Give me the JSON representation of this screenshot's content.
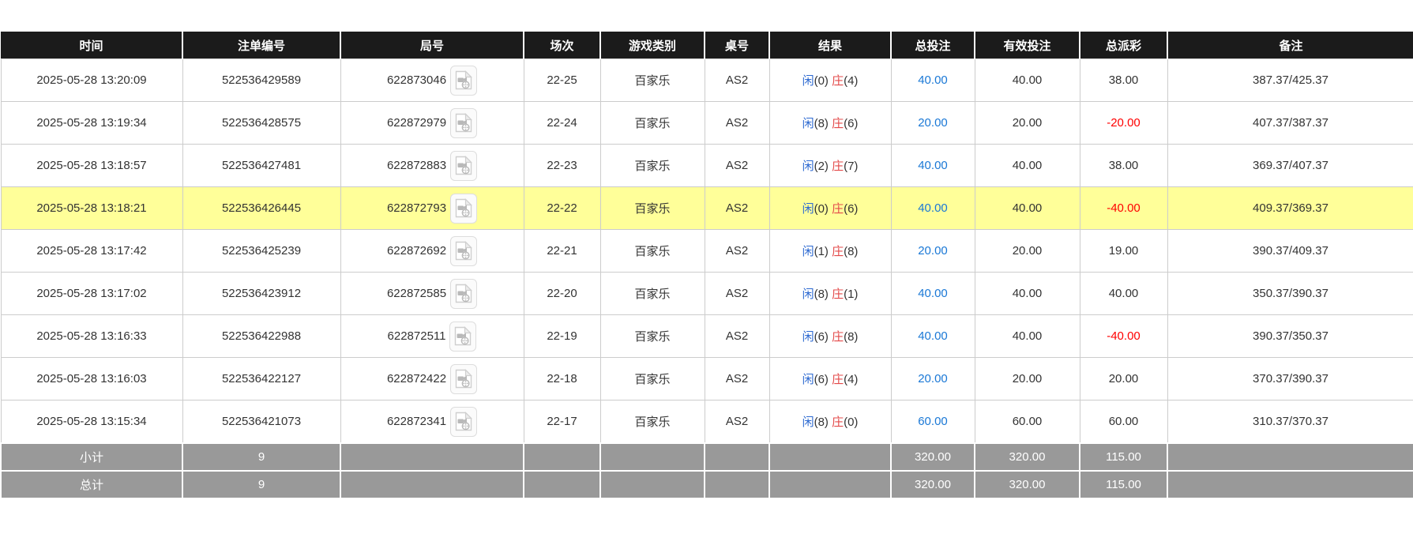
{
  "table": {
    "columns": [
      {
        "key": "time",
        "label": "时间"
      },
      {
        "key": "bet_id",
        "label": "注单编号"
      },
      {
        "key": "round_id",
        "label": "局号"
      },
      {
        "key": "session",
        "label": "场次"
      },
      {
        "key": "game_type",
        "label": "游戏类别"
      },
      {
        "key": "table_no",
        "label": "桌号"
      },
      {
        "key": "result",
        "label": "结果"
      },
      {
        "key": "total_bet",
        "label": "总投注"
      },
      {
        "key": "valid_bet",
        "label": "有效投注"
      },
      {
        "key": "total_payout",
        "label": "总派彩"
      },
      {
        "key": "remark",
        "label": "备注"
      }
    ],
    "rows": [
      {
        "time": "2025-05-28 13:20:09",
        "bet_id": "522536429589",
        "round_id": "622873046",
        "session": "22-25",
        "game_type": "百家乐",
        "table_no": "AS2",
        "result": {
          "player": "闲",
          "player_pts": "(0)",
          "banker": "庄",
          "banker_pts": "(4)"
        },
        "total_bet": "40.00",
        "valid_bet": "40.00",
        "total_payout": "38.00",
        "remark": "387.37/425.37",
        "highlighted": false
      },
      {
        "time": "2025-05-28 13:19:34",
        "bet_id": "522536428575",
        "round_id": "622872979",
        "session": "22-24",
        "game_type": "百家乐",
        "table_no": "AS2",
        "result": {
          "player": "闲",
          "player_pts": "(8)",
          "banker": "庄",
          "banker_pts": "(6)"
        },
        "total_bet": "20.00",
        "valid_bet": "20.00",
        "total_payout": "-20.00",
        "remark": "407.37/387.37",
        "highlighted": false
      },
      {
        "time": "2025-05-28 13:18:57",
        "bet_id": "522536427481",
        "round_id": "622872883",
        "session": "22-23",
        "game_type": "百家乐",
        "table_no": "AS2",
        "result": {
          "player": "闲",
          "player_pts": "(2)",
          "banker": "庄",
          "banker_pts": "(7)"
        },
        "total_bet": "40.00",
        "valid_bet": "40.00",
        "total_payout": "38.00",
        "remark": "369.37/407.37",
        "highlighted": false
      },
      {
        "time": "2025-05-28 13:18:21",
        "bet_id": "522536426445",
        "round_id": "622872793",
        "session": "22-22",
        "game_type": "百家乐",
        "table_no": "AS2",
        "result": {
          "player": "闲",
          "player_pts": "(0)",
          "banker": "庄",
          "banker_pts": "(6)"
        },
        "total_bet": "40.00",
        "valid_bet": "40.00",
        "total_payout": "-40.00",
        "remark": "409.37/369.37",
        "highlighted": true
      },
      {
        "time": "2025-05-28 13:17:42",
        "bet_id": "522536425239",
        "round_id": "622872692",
        "session": "22-21",
        "game_type": "百家乐",
        "table_no": "AS2",
        "result": {
          "player": "闲",
          "player_pts": "(1)",
          "banker": "庄",
          "banker_pts": "(8)"
        },
        "total_bet": "20.00",
        "valid_bet": "20.00",
        "total_payout": "19.00",
        "remark": "390.37/409.37",
        "highlighted": false
      },
      {
        "time": "2025-05-28 13:17:02",
        "bet_id": "522536423912",
        "round_id": "622872585",
        "session": "22-20",
        "game_type": "百家乐",
        "table_no": "AS2",
        "result": {
          "player": "闲",
          "player_pts": "(8)",
          "banker": "庄",
          "banker_pts": "(1)"
        },
        "total_bet": "40.00",
        "valid_bet": "40.00",
        "total_payout": "40.00",
        "remark": "350.37/390.37",
        "highlighted": false
      },
      {
        "time": "2025-05-28 13:16:33",
        "bet_id": "522536422988",
        "round_id": "622872511",
        "session": "22-19",
        "game_type": "百家乐",
        "table_no": "AS2",
        "result": {
          "player": "闲",
          "player_pts": "(6)",
          "banker": "庄",
          "banker_pts": "(8)"
        },
        "total_bet": "40.00",
        "valid_bet": "40.00",
        "total_payout": "-40.00",
        "remark": "390.37/350.37",
        "highlighted": false
      },
      {
        "time": "2025-05-28 13:16:03",
        "bet_id": "522536422127",
        "round_id": "622872422",
        "session": "22-18",
        "game_type": "百家乐",
        "table_no": "AS2",
        "result": {
          "player": "闲",
          "player_pts": "(6)",
          "banker": "庄",
          "banker_pts": "(4)"
        },
        "total_bet": "20.00",
        "valid_bet": "20.00",
        "total_payout": "20.00",
        "remark": "370.37/390.37",
        "highlighted": false
      },
      {
        "time": "2025-05-28 13:15:34",
        "bet_id": "522536421073",
        "round_id": "622872341",
        "session": "22-17",
        "game_type": "百家乐",
        "table_no": "AS2",
        "result": {
          "player": "闲",
          "player_pts": "(8)",
          "banker": "庄",
          "banker_pts": "(0)"
        },
        "total_bet": "60.00",
        "valid_bet": "60.00",
        "total_payout": "60.00",
        "remark": "310.37/370.37",
        "highlighted": false
      }
    ],
    "footer_rows": [
      {
        "label": "小计",
        "count": "9",
        "total_bet": "320.00",
        "valid_bet": "320.00",
        "total_payout": "115.00"
      },
      {
        "label": "总计",
        "count": "9",
        "total_bet": "320.00",
        "valid_bet": "320.00",
        "total_payout": "115.00"
      }
    ]
  },
  "icons": {
    "video_icon": "video-replay-document-icon"
  },
  "colors": {
    "header_bg": "#1b1b1b",
    "header_text": "#ffffff",
    "row_border": "#cccccc",
    "highlight_row_bg": "#ffff99",
    "footer_bg": "#999999",
    "footer_text": "#ffffff",
    "player_blue": "#2e6ad1",
    "banker_red": "#e34a4a",
    "bet_link_blue": "#1a78d6",
    "negative_red": "#ff0000",
    "text": "#333333"
  }
}
